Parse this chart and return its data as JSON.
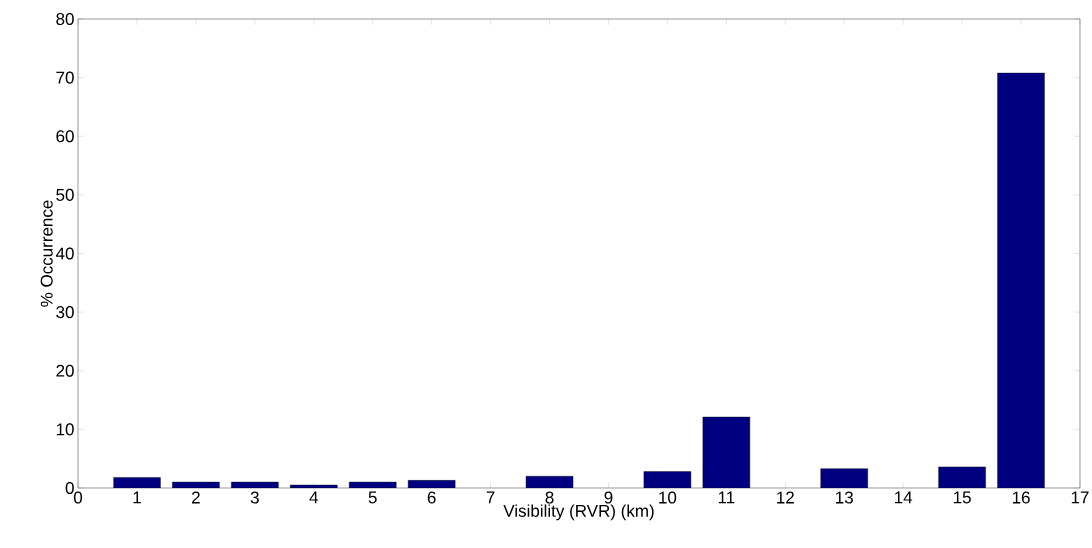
{
  "chart_data": {
    "type": "bar",
    "xlabel": "Visibility (RVR) (km)",
    "ylabel": "% Occurrence",
    "x": [
      1,
      2,
      3,
      4,
      5,
      6,
      8,
      10,
      11,
      13,
      15,
      16
    ],
    "values": [
      1.8,
      1,
      1,
      0.5,
      1,
      1.3,
      2.0,
      2.8,
      12.1,
      3.3,
      3.6,
      70.8
    ],
    "color": "#000080",
    "xlim": [
      0,
      17
    ],
    "xticks": [
      0,
      1,
      2,
      3,
      4,
      5,
      6,
      7,
      8,
      9,
      10,
      11,
      12,
      13,
      14,
      15,
      16,
      17
    ],
    "ylim": [
      0,
      80
    ],
    "yticks": [
      0,
      10,
      20,
      30,
      40,
      50,
      60,
      70,
      80
    ],
    "grid": false
  }
}
